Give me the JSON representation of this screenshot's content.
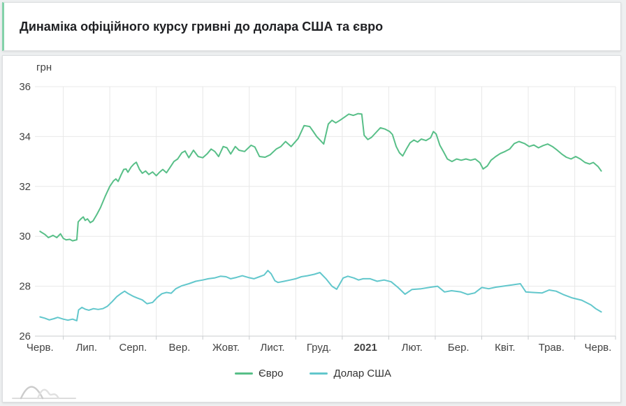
{
  "title": "Динаміка офіційного курсу гривні до долара США та євро",
  "theme": {
    "accent_border": "#83d2a9",
    "grid_color": "#e8e8e8",
    "axis_color": "#c9cccf",
    "label_color": "#424242",
    "title_color": "#202124",
    "card_background": "#ffffff",
    "page_background": "#eef0f1",
    "logo_color": "#d2d2d2"
  },
  "legend": {
    "items": [
      {
        "label": "Євро"
      },
      {
        "label": "Долар США"
      }
    ]
  },
  "chart_data": {
    "type": "line",
    "title": "Динаміка офіційного курсу гривні до долара США та євро",
    "xlabel": "",
    "ylabel": "грн",
    "ylim": [
      26,
      36
    ],
    "y_ticks": [
      36,
      34,
      32,
      30,
      28,
      26
    ],
    "x_tick_labels": [
      "Черв.",
      "Лип.",
      "Серп.",
      "Вер.",
      "Жовт.",
      "Лист.",
      "Груд.",
      "2021",
      "Лют.",
      "Бер.",
      "Квіт.",
      "Трав.",
      "Черв."
    ],
    "bold_x_tick": "2021",
    "grid": true,
    "legend_position": "bottom",
    "x_range_months": [
      0,
      12.4
    ],
    "series": [
      {
        "name": "Євро",
        "color": "#58bf88",
        "points": [
          [
            0,
            30.2
          ],
          [
            0.1,
            30.08
          ],
          [
            0.18,
            29.95
          ],
          [
            0.28,
            30.04
          ],
          [
            0.36,
            29.95
          ],
          [
            0.44,
            30.1
          ],
          [
            0.5,
            29.92
          ],
          [
            0.56,
            29.86
          ],
          [
            0.64,
            29.88
          ],
          [
            0.7,
            29.82
          ],
          [
            0.76,
            29.85
          ],
          [
            0.79,
            29.86
          ],
          [
            0.82,
            30.58
          ],
          [
            0.88,
            30.7
          ],
          [
            0.93,
            30.78
          ],
          [
            0.97,
            30.64
          ],
          [
            1.02,
            30.7
          ],
          [
            1.08,
            30.55
          ],
          [
            1.14,
            30.62
          ],
          [
            1.22,
            30.87
          ],
          [
            1.3,
            31.15
          ],
          [
            1.4,
            31.6
          ],
          [
            1.5,
            32.0
          ],
          [
            1.58,
            32.22
          ],
          [
            1.63,
            32.3
          ],
          [
            1.68,
            32.2
          ],
          [
            1.74,
            32.45
          ],
          [
            1.8,
            32.68
          ],
          [
            1.85,
            32.7
          ],
          [
            1.89,
            32.57
          ],
          [
            1.96,
            32.78
          ],
          [
            2.02,
            32.9
          ],
          [
            2.07,
            32.97
          ],
          [
            2.14,
            32.68
          ],
          [
            2.2,
            32.53
          ],
          [
            2.27,
            32.62
          ],
          [
            2.34,
            32.48
          ],
          [
            2.42,
            32.58
          ],
          [
            2.5,
            32.43
          ],
          [
            2.57,
            32.57
          ],
          [
            2.64,
            32.68
          ],
          [
            2.72,
            32.55
          ],
          [
            2.8,
            32.77
          ],
          [
            2.88,
            33.0
          ],
          [
            2.96,
            33.1
          ],
          [
            3.05,
            33.35
          ],
          [
            3.12,
            33.42
          ],
          [
            3.2,
            33.15
          ],
          [
            3.3,
            33.45
          ],
          [
            3.4,
            33.2
          ],
          [
            3.5,
            33.15
          ],
          [
            3.6,
            33.32
          ],
          [
            3.68,
            33.5
          ],
          [
            3.76,
            33.4
          ],
          [
            3.84,
            33.2
          ],
          [
            3.94,
            33.6
          ],
          [
            4.02,
            33.55
          ],
          [
            4.1,
            33.3
          ],
          [
            4.2,
            33.6
          ],
          [
            4.28,
            33.45
          ],
          [
            4.4,
            33.4
          ],
          [
            4.54,
            33.65
          ],
          [
            4.62,
            33.58
          ],
          [
            4.72,
            33.2
          ],
          [
            4.84,
            33.17
          ],
          [
            4.95,
            33.27
          ],
          [
            5.08,
            33.5
          ],
          [
            5.18,
            33.6
          ],
          [
            5.28,
            33.8
          ],
          [
            5.4,
            33.6
          ],
          [
            5.55,
            33.92
          ],
          [
            5.68,
            34.44
          ],
          [
            5.8,
            34.4
          ],
          [
            5.87,
            34.22
          ],
          [
            5.95,
            34.0
          ],
          [
            6.04,
            33.82
          ],
          [
            6.1,
            33.7
          ],
          [
            6.2,
            34.5
          ],
          [
            6.28,
            34.65
          ],
          [
            6.36,
            34.55
          ],
          [
            6.45,
            34.65
          ],
          [
            6.55,
            34.78
          ],
          [
            6.64,
            34.9
          ],
          [
            6.74,
            34.85
          ],
          [
            6.84,
            34.92
          ],
          [
            6.92,
            34.9
          ],
          [
            6.97,
            34.05
          ],
          [
            7.05,
            33.88
          ],
          [
            7.13,
            33.97
          ],
          [
            7.22,
            34.15
          ],
          [
            7.32,
            34.35
          ],
          [
            7.42,
            34.3
          ],
          [
            7.52,
            34.2
          ],
          [
            7.58,
            34.08
          ],
          [
            7.66,
            33.6
          ],
          [
            7.73,
            33.35
          ],
          [
            7.8,
            33.22
          ],
          [
            7.88,
            33.5
          ],
          [
            7.96,
            33.75
          ],
          [
            8.04,
            33.86
          ],
          [
            8.12,
            33.78
          ],
          [
            8.2,
            33.9
          ],
          [
            8.3,
            33.84
          ],
          [
            8.4,
            33.95
          ],
          [
            8.46,
            34.2
          ],
          [
            8.52,
            34.1
          ],
          [
            8.6,
            33.65
          ],
          [
            8.68,
            33.38
          ],
          [
            8.76,
            33.1
          ],
          [
            8.86,
            33.0
          ],
          [
            8.96,
            33.1
          ],
          [
            9.06,
            33.05
          ],
          [
            9.16,
            33.1
          ],
          [
            9.26,
            33.05
          ],
          [
            9.36,
            33.1
          ],
          [
            9.46,
            32.95
          ],
          [
            9.53,
            32.7
          ],
          [
            9.62,
            32.82
          ],
          [
            9.7,
            33.05
          ],
          [
            9.8,
            33.2
          ],
          [
            9.9,
            33.32
          ],
          [
            10.0,
            33.4
          ],
          [
            10.1,
            33.5
          ],
          [
            10.2,
            33.72
          ],
          [
            10.3,
            33.8
          ],
          [
            10.42,
            33.72
          ],
          [
            10.52,
            33.6
          ],
          [
            10.62,
            33.66
          ],
          [
            10.72,
            33.55
          ],
          [
            10.82,
            33.64
          ],
          [
            10.92,
            33.7
          ],
          [
            11.02,
            33.6
          ],
          [
            11.12,
            33.46
          ],
          [
            11.22,
            33.3
          ],
          [
            11.32,
            33.17
          ],
          [
            11.42,
            33.1
          ],
          [
            11.52,
            33.2
          ],
          [
            11.62,
            33.1
          ],
          [
            11.72,
            32.96
          ],
          [
            11.82,
            32.9
          ],
          [
            11.9,
            32.96
          ],
          [
            12.0,
            32.8
          ],
          [
            12.07,
            32.62
          ]
        ]
      },
      {
        "name": "Долар США",
        "color": "#62c7cc",
        "points": [
          [
            0,
            26.77
          ],
          [
            0.1,
            26.72
          ],
          [
            0.2,
            26.65
          ],
          [
            0.3,
            26.7
          ],
          [
            0.38,
            26.75
          ],
          [
            0.5,
            26.68
          ],
          [
            0.6,
            26.64
          ],
          [
            0.7,
            26.68
          ],
          [
            0.79,
            26.62
          ],
          [
            0.83,
            27.05
          ],
          [
            0.9,
            27.15
          ],
          [
            0.97,
            27.08
          ],
          [
            1.05,
            27.04
          ],
          [
            1.15,
            27.1
          ],
          [
            1.25,
            27.07
          ],
          [
            1.35,
            27.1
          ],
          [
            1.45,
            27.2
          ],
          [
            1.55,
            27.38
          ],
          [
            1.65,
            27.58
          ],
          [
            1.75,
            27.72
          ],
          [
            1.82,
            27.8
          ],
          [
            1.9,
            27.7
          ],
          [
            2.0,
            27.6
          ],
          [
            2.1,
            27.52
          ],
          [
            2.2,
            27.45
          ],
          [
            2.3,
            27.3
          ],
          [
            2.42,
            27.35
          ],
          [
            2.52,
            27.55
          ],
          [
            2.62,
            27.7
          ],
          [
            2.72,
            27.75
          ],
          [
            2.82,
            27.72
          ],
          [
            2.92,
            27.9
          ],
          [
            3.05,
            28.02
          ],
          [
            3.2,
            28.1
          ],
          [
            3.35,
            28.2
          ],
          [
            3.5,
            28.25
          ],
          [
            3.62,
            28.3
          ],
          [
            3.75,
            28.33
          ],
          [
            3.88,
            28.4
          ],
          [
            4.0,
            28.38
          ],
          [
            4.1,
            28.3
          ],
          [
            4.22,
            28.35
          ],
          [
            4.35,
            28.42
          ],
          [
            4.48,
            28.35
          ],
          [
            4.6,
            28.3
          ],
          [
            4.72,
            28.38
          ],
          [
            4.82,
            28.45
          ],
          [
            4.9,
            28.63
          ],
          [
            4.97,
            28.5
          ],
          [
            5.05,
            28.22
          ],
          [
            5.12,
            28.15
          ],
          [
            5.25,
            28.2
          ],
          [
            5.38,
            28.25
          ],
          [
            5.5,
            28.3
          ],
          [
            5.62,
            28.38
          ],
          [
            5.75,
            28.42
          ],
          [
            5.9,
            28.48
          ],
          [
            6.02,
            28.55
          ],
          [
            6.15,
            28.3
          ],
          [
            6.28,
            28.0
          ],
          [
            6.38,
            27.88
          ],
          [
            6.45,
            28.1
          ],
          [
            6.52,
            28.33
          ],
          [
            6.62,
            28.4
          ],
          [
            6.75,
            28.33
          ],
          [
            6.85,
            28.25
          ],
          [
            6.95,
            28.3
          ],
          [
            7.1,
            28.3
          ],
          [
            7.25,
            28.2
          ],
          [
            7.4,
            28.25
          ],
          [
            7.55,
            28.18
          ],
          [
            7.7,
            27.95
          ],
          [
            7.85,
            27.68
          ],
          [
            8.0,
            27.87
          ],
          [
            8.2,
            27.9
          ],
          [
            8.4,
            27.96
          ],
          [
            8.55,
            28.0
          ],
          [
            8.7,
            27.77
          ],
          [
            8.85,
            27.82
          ],
          [
            9.05,
            27.77
          ],
          [
            9.2,
            27.67
          ],
          [
            9.35,
            27.73
          ],
          [
            9.5,
            27.95
          ],
          [
            9.65,
            27.9
          ],
          [
            9.8,
            27.96
          ],
          [
            9.95,
            28.0
          ],
          [
            10.15,
            28.05
          ],
          [
            10.33,
            28.1
          ],
          [
            10.45,
            27.77
          ],
          [
            10.6,
            27.75
          ],
          [
            10.8,
            27.73
          ],
          [
            10.95,
            27.85
          ],
          [
            11.1,
            27.8
          ],
          [
            11.25,
            27.67
          ],
          [
            11.45,
            27.53
          ],
          [
            11.65,
            27.44
          ],
          [
            11.85,
            27.25
          ],
          [
            11.95,
            27.1
          ],
          [
            12.07,
            26.97
          ]
        ]
      }
    ]
  }
}
